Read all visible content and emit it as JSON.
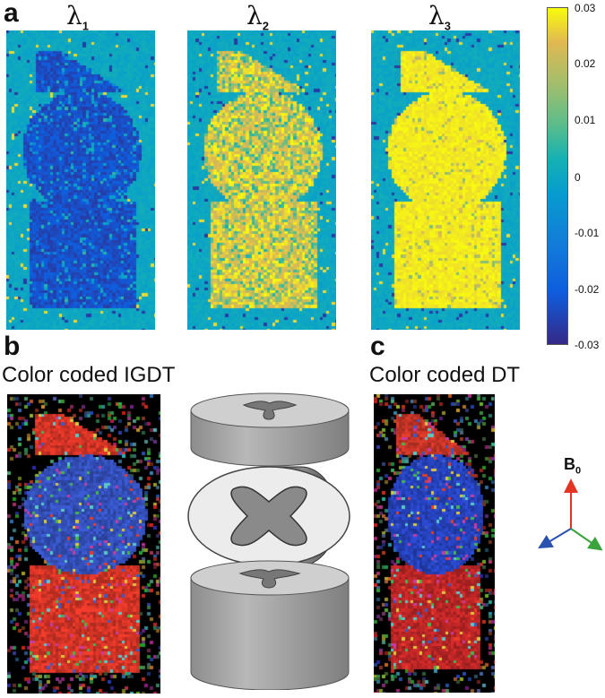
{
  "panels": {
    "a": {
      "letter": "a",
      "maps": [
        {
          "symbol": "λ",
          "sub": "1"
        },
        {
          "symbol": "λ",
          "sub": "2"
        },
        {
          "symbol": "λ",
          "sub": "3"
        }
      ],
      "colorbar": {
        "ticks": [
          "0.03",
          "0.02",
          "0.01",
          "0",
          "-0.01",
          "-0.02",
          "-0.03"
        ],
        "range": [
          -0.03,
          0.03
        ],
        "colormap": "parula"
      }
    },
    "b": {
      "letter": "b",
      "title": "Color coded IGDT"
    },
    "c": {
      "letter": "c",
      "title": "Color coded DT"
    }
  },
  "axes_legend": {
    "label": "B",
    "sub": "0",
    "colors": {
      "up": "#e53322",
      "left": "#2a52b0",
      "right": "#39a33c"
    }
  }
}
